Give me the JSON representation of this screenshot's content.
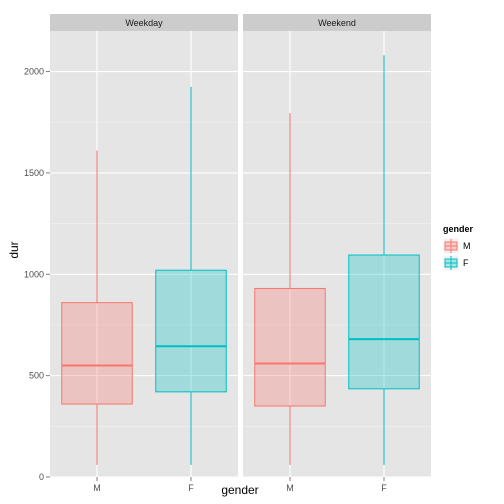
{
  "chart_data": {
    "type": "boxplot",
    "xlabel": "gender",
    "ylabel": "dur",
    "ylim": [
      0,
      2200
    ],
    "yticks": [
      0,
      500,
      1000,
      1500,
      2000
    ],
    "categories": [
      "M",
      "F"
    ],
    "grid": true,
    "legend": {
      "title": "gender",
      "placement": "right",
      "entries": [
        {
          "label": "M",
          "color": "#f8766d"
        },
        {
          "label": "F",
          "color": "#00bfc4"
        }
      ]
    },
    "facets": [
      {
        "label": "Weekday",
        "boxes": [
          {
            "category": "M",
            "min": 60,
            "q1": 360,
            "median": 550,
            "q3": 860,
            "max": 1610
          },
          {
            "category": "F",
            "min": 60,
            "q1": 420,
            "median": 645,
            "q3": 1020,
            "max": 1925
          }
        ]
      },
      {
        "label": "Weekend",
        "boxes": [
          {
            "category": "M",
            "min": 60,
            "q1": 350,
            "median": 560,
            "q3": 930,
            "max": 1795
          },
          {
            "category": "F",
            "min": 60,
            "q1": 435,
            "median": 680,
            "q3": 1095,
            "max": 2080
          }
        ]
      }
    ]
  }
}
